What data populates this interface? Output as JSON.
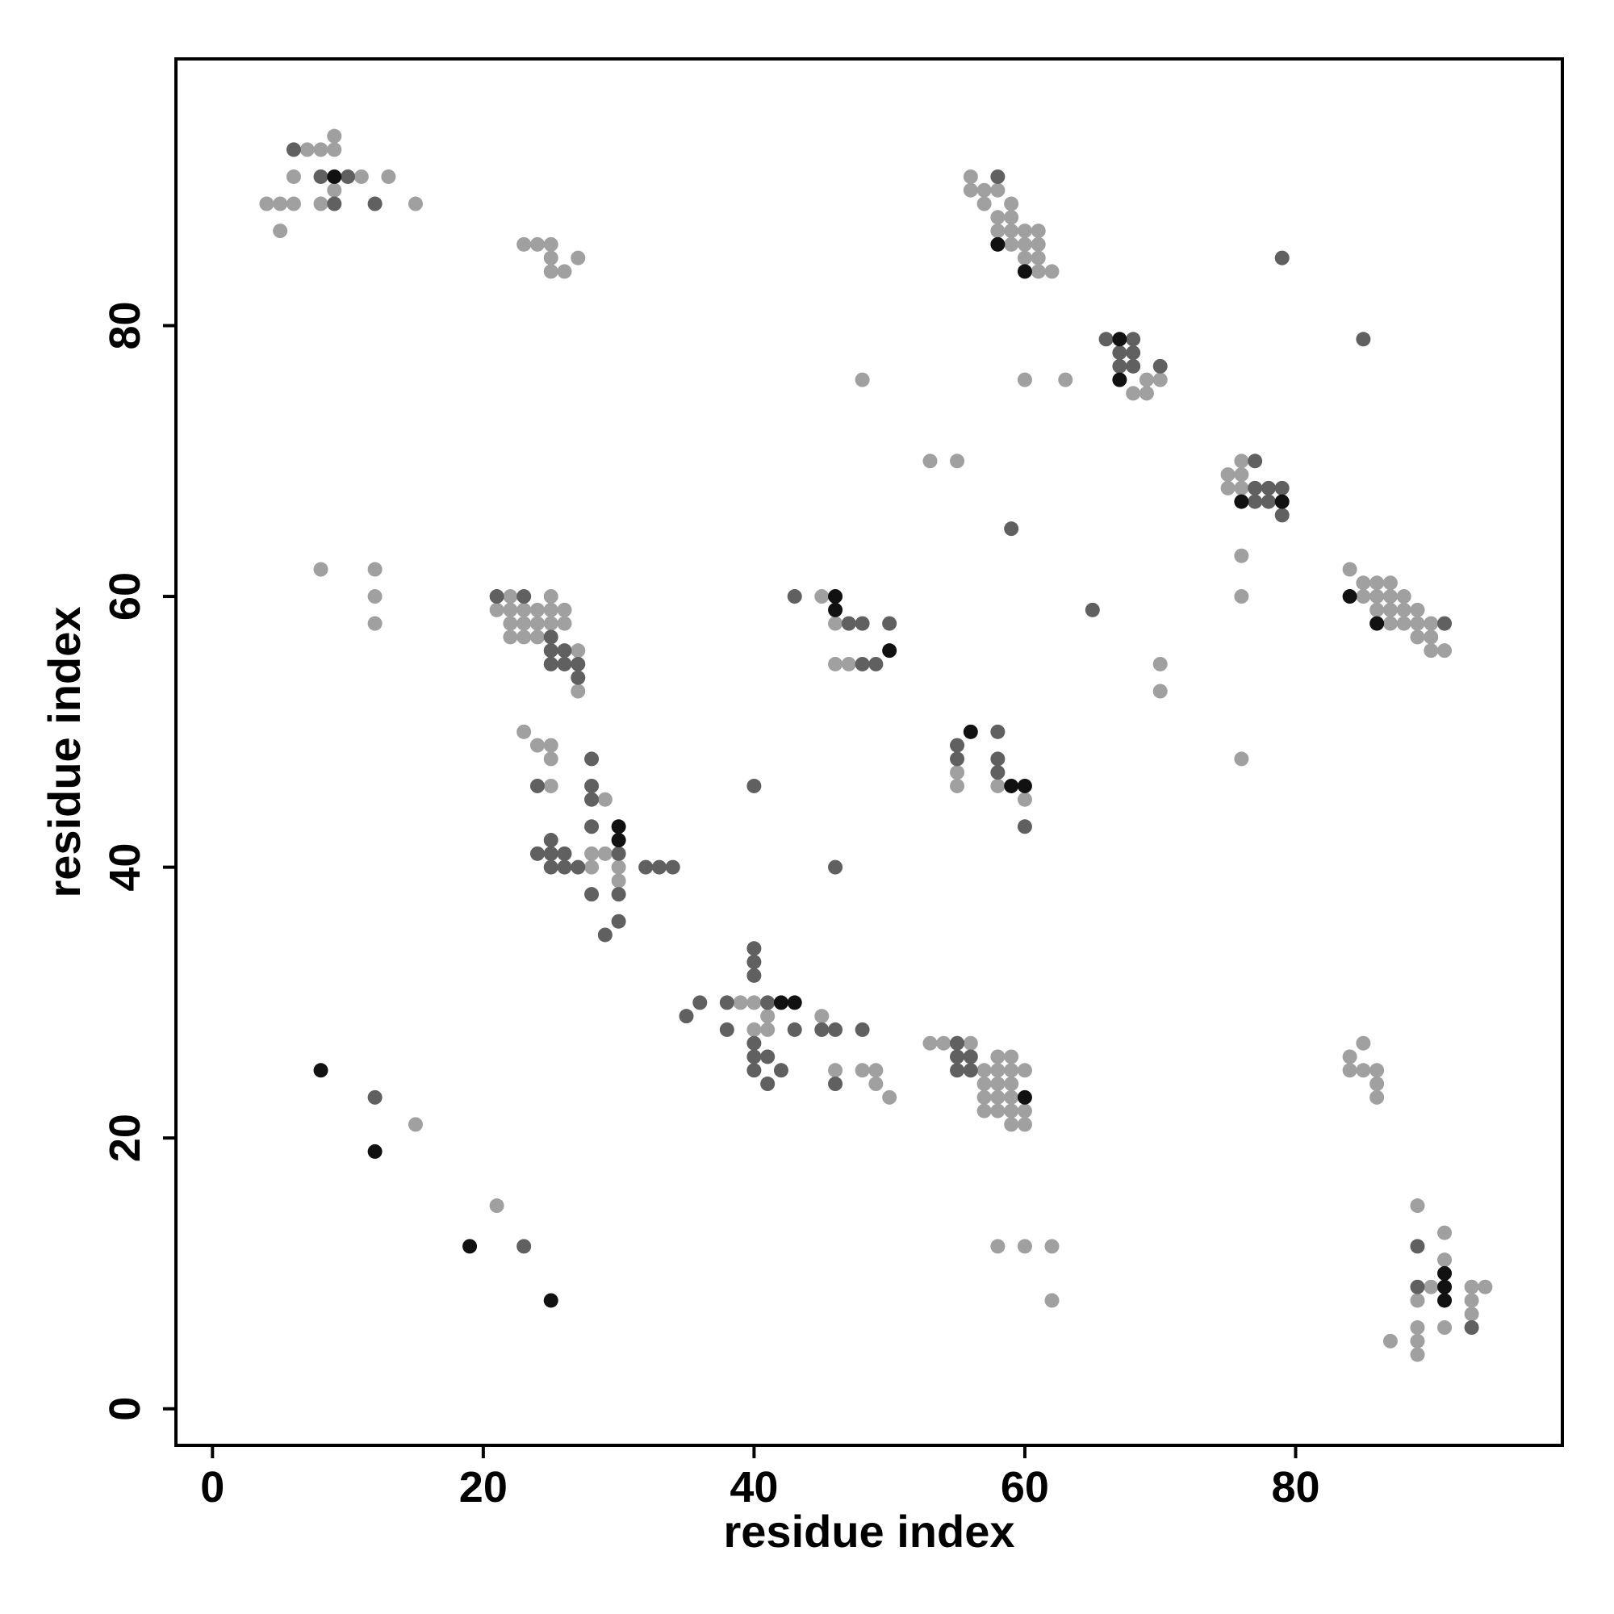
{
  "chart_data": {
    "type": "scatter",
    "x_label": "residue index",
    "y_label": "residue index",
    "xlim": [
      -2.7,
      99.7
    ],
    "ylim": [
      -2.7,
      99.7
    ],
    "xticks": [
      0,
      20,
      40,
      60,
      80
    ],
    "yticks": [
      0,
      20,
      40,
      60,
      80
    ],
    "series": [
      {
        "color": "#a0a0a0",
        "x": [
          9,
          7,
          8,
          9,
          6,
          11,
          13,
          56,
          9,
          56,
          57,
          58,
          4,
          5,
          6,
          8,
          15,
          57,
          59,
          58,
          59,
          5,
          58,
          59,
          60,
          61,
          23,
          24,
          25,
          59,
          60,
          61,
          25,
          27,
          60,
          61,
          25,
          26,
          61,
          62,
          48,
          60,
          63,
          69,
          70,
          68,
          69,
          53,
          55,
          76,
          75,
          76,
          75,
          76,
          76,
          8,
          12,
          84,
          85,
          86,
          87,
          12,
          22,
          25,
          45,
          76,
          85,
          86,
          87,
          88,
          21,
          22,
          23,
          24,
          25,
          26,
          86,
          87,
          88,
          89,
          12,
          22,
          23,
          24,
          25,
          26,
          46,
          87,
          88,
          89,
          90,
          22,
          23,
          24,
          89,
          90,
          27,
          90,
          91,
          46,
          47,
          70,
          27,
          70,
          23,
          24,
          25,
          25,
          76,
          55,
          25,
          55,
          58,
          29,
          60,
          28,
          29,
          28,
          30,
          30,
          39,
          40,
          41,
          45,
          40,
          41,
          53,
          54,
          56,
          85,
          58,
          59,
          84,
          46,
          48,
          49,
          57,
          58,
          59,
          60,
          84,
          85,
          86,
          49,
          57,
          58,
          59,
          86,
          50,
          57,
          58,
          59,
          86,
          57,
          58,
          59,
          60,
          15,
          59,
          60,
          21,
          89,
          91,
          58,
          60,
          62,
          91,
          90,
          93,
          94,
          62,
          89,
          93,
          93,
          89,
          91,
          87,
          89,
          89
        ],
        "y": [
          94,
          93,
          93,
          93,
          91,
          91,
          91,
          91,
          90,
          90,
          90,
          90,
          89,
          89,
          89,
          89,
          89,
          89,
          89,
          88,
          88,
          87,
          87,
          87,
          87,
          87,
          86,
          86,
          86,
          86,
          86,
          86,
          85,
          85,
          85,
          85,
          84,
          84,
          84,
          84,
          76,
          76,
          76,
          76,
          76,
          75,
          75,
          70,
          70,
          70,
          69,
          69,
          68,
          68,
          63,
          62,
          62,
          62,
          61,
          61,
          61,
          60,
          60,
          60,
          60,
          60,
          60,
          60,
          60,
          60,
          59,
          59,
          59,
          59,
          59,
          59,
          59,
          59,
          59,
          59,
          58,
          58,
          58,
          58,
          58,
          58,
          58,
          58,
          58,
          58,
          58,
          57,
          57,
          57,
          57,
          57,
          56,
          56,
          56,
          55,
          55,
          55,
          53,
          53,
          50,
          49,
          49,
          48,
          48,
          47,
          46,
          46,
          46,
          45,
          45,
          41,
          41,
          40,
          40,
          39,
          30,
          30,
          29,
          29,
          28,
          28,
          27,
          27,
          27,
          27,
          26,
          26,
          26,
          25,
          25,
          25,
          25,
          25,
          25,
          25,
          25,
          25,
          25,
          24,
          24,
          24,
          24,
          24,
          23,
          23,
          23,
          23,
          23,
          22,
          22,
          22,
          22,
          21,
          21,
          21,
          15,
          15,
          13,
          12,
          12,
          12,
          11,
          9,
          9,
          9,
          8,
          8,
          8,
          7,
          6,
          6,
          5,
          5,
          4
        ]
      },
      {
        "color": "#606060",
        "x": [
          6,
          8,
          10,
          58,
          9,
          12,
          79,
          66,
          68,
          85,
          67,
          68,
          67,
          68,
          70,
          77,
          77,
          78,
          79,
          77,
          78,
          79,
          59,
          21,
          23,
          43,
          65,
          47,
          48,
          50,
          91,
          25,
          25,
          26,
          25,
          26,
          27,
          48,
          49,
          27,
          58,
          55,
          28,
          55,
          58,
          58,
          24,
          28,
          40,
          28,
          28,
          60,
          25,
          24,
          25,
          26,
          30,
          25,
          26,
          27,
          32,
          33,
          34,
          46,
          28,
          30,
          30,
          29,
          40,
          40,
          40,
          36,
          38,
          41,
          35,
          38,
          43,
          45,
          46,
          48,
          40,
          55,
          40,
          41,
          55,
          56,
          40,
          42,
          55,
          56,
          41,
          46,
          12,
          23,
          89,
          89,
          93
        ],
        "y": [
          93,
          91,
          91,
          91,
          89,
          89,
          85,
          79,
          79,
          79,
          78,
          78,
          77,
          77,
          77,
          70,
          68,
          68,
          68,
          67,
          67,
          66,
          65,
          60,
          60,
          60,
          59,
          58,
          58,
          58,
          58,
          57,
          56,
          56,
          55,
          55,
          55,
          55,
          55,
          54,
          50,
          49,
          48,
          48,
          48,
          47,
          46,
          46,
          46,
          45,
          43,
          43,
          42,
          41,
          41,
          41,
          41,
          40,
          40,
          40,
          40,
          40,
          40,
          40,
          38,
          38,
          36,
          35,
          34,
          33,
          32,
          30,
          30,
          30,
          29,
          28,
          28,
          28,
          28,
          28,
          27,
          27,
          26,
          26,
          26,
          26,
          25,
          25,
          25,
          25,
          24,
          24,
          23,
          12,
          12,
          9,
          6
        ]
      },
      {
        "color": "#111111",
        "x": [
          9,
          58,
          60,
          67,
          67,
          76,
          79,
          46,
          84,
          46,
          86,
          50,
          56,
          59,
          60,
          30,
          30,
          42,
          43,
          8,
          60,
          12,
          19,
          91,
          91,
          25,
          91
        ],
        "y": [
          91,
          86,
          84,
          79,
          76,
          67,
          67,
          60,
          60,
          59,
          58,
          56,
          50,
          46,
          46,
          43,
          42,
          30,
          30,
          25,
          23,
          19,
          12,
          10,
          9,
          8,
          8
        ]
      }
    ]
  }
}
